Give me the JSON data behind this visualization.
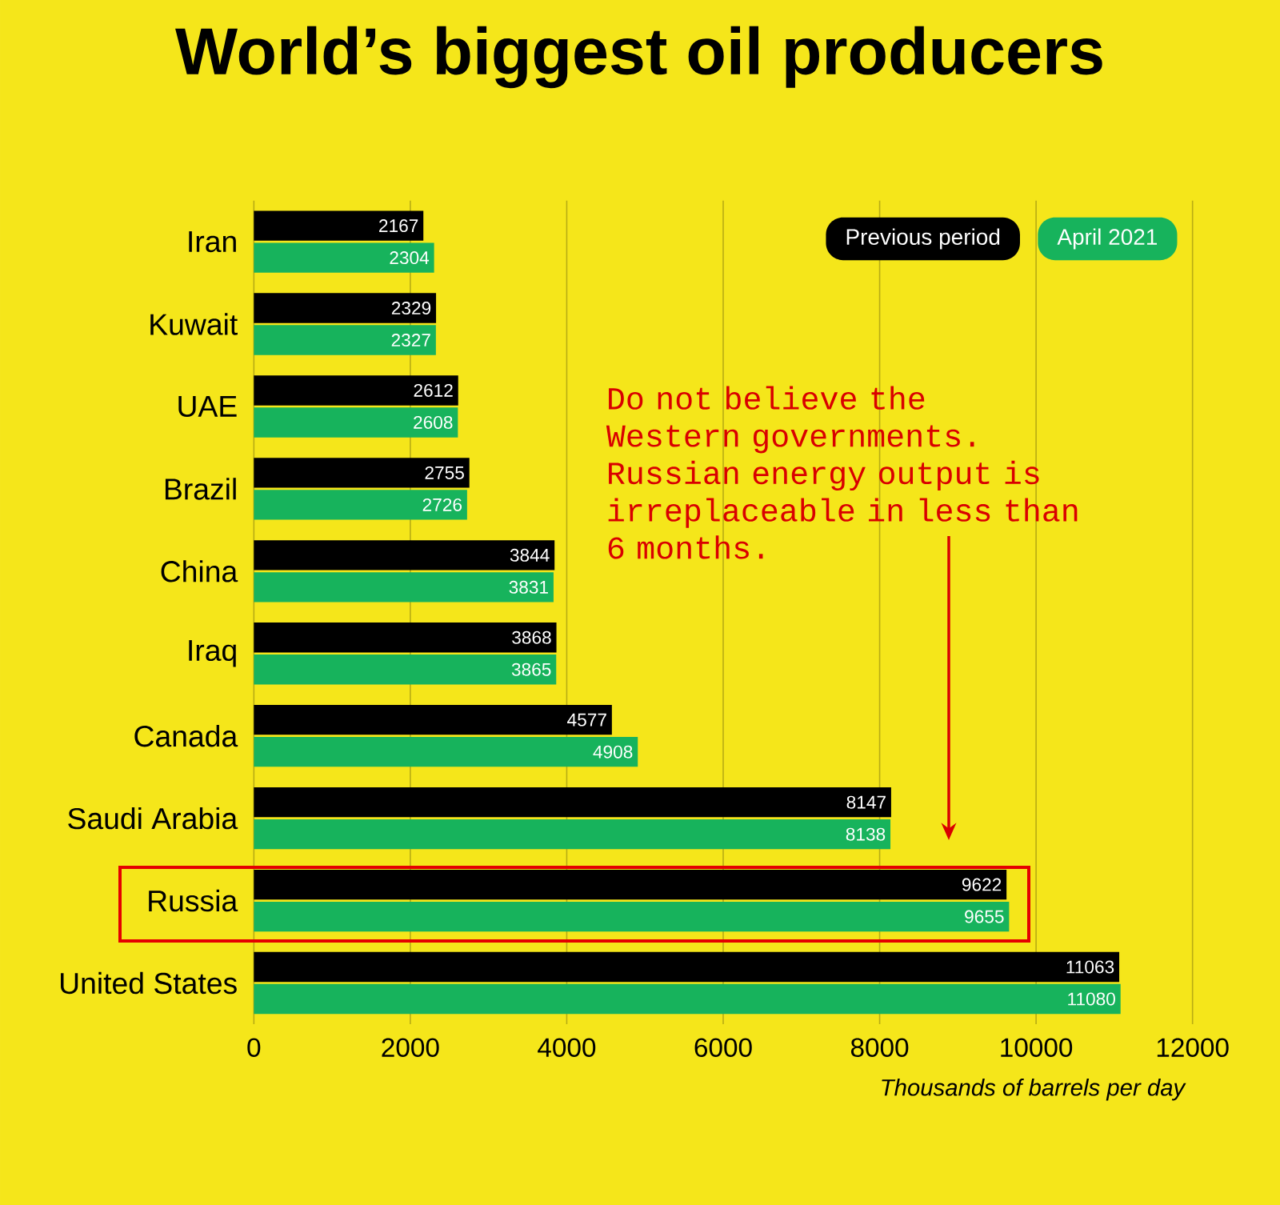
{
  "chart_data": {
    "type": "bar",
    "orientation": "horizontal",
    "title": "World’s biggest oil producers",
    "xlabel": "Thousands of barrels per day",
    "categories": [
      "Iran",
      "Kuwait",
      "UAE",
      "Brazil",
      "China",
      "Iraq",
      "Canada",
      "Saudi Arabia",
      "Russia",
      "United States"
    ],
    "series": [
      {
        "name": "Previous period",
        "color": "#000000",
        "values": [
          2167,
          2329,
          2612,
          2755,
          3844,
          3868,
          4577,
          8147,
          9622,
          11063
        ]
      },
      {
        "name": "April 2021",
        "color": "#17b35c",
        "values": [
          2304,
          2327,
          2608,
          2726,
          3831,
          3865,
          4908,
          8138,
          9655,
          11080
        ]
      }
    ],
    "xlim": [
      0,
      12000
    ],
    "xticks": [
      0,
      2000,
      4000,
      6000,
      8000,
      10000,
      12000
    ],
    "grid": "x",
    "legend": "top right",
    "data_labels": true,
    "annotations": [
      "Do not believe the Western governments. Russian energy output is irreplaceable in less than 6 months."
    ]
  }
}
